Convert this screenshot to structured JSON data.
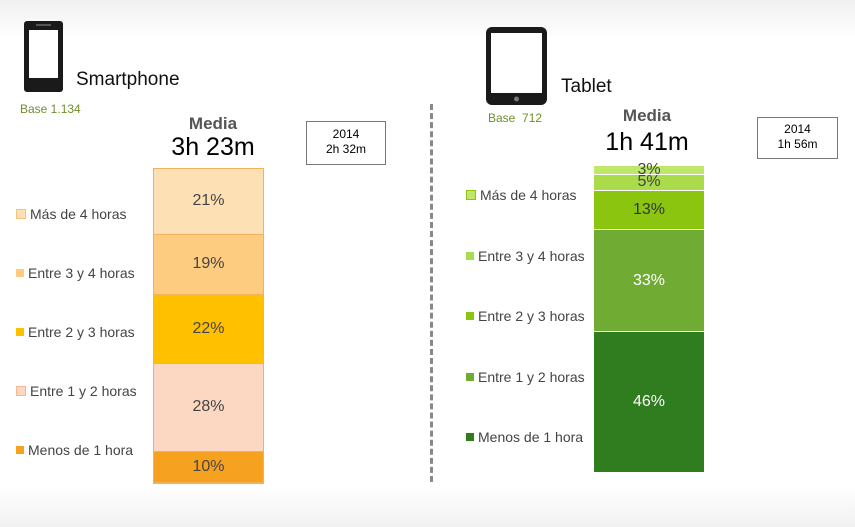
{
  "smartphone": {
    "title": "Smartphone",
    "base": "Base 1.134",
    "media_label": "Media",
    "media_value": "3h 23m",
    "prev_year": "2014",
    "prev_value": "2h 32m",
    "icon": "smartphone-icon"
  },
  "tablet": {
    "title": "Tablet",
    "base": "Base  712",
    "media_label": "Media",
    "media_value": "1h 41m",
    "prev_year": "2014",
    "prev_value": "1h 56m",
    "icon": "tablet-icon"
  },
  "chart_data": [
    {
      "type": "bar",
      "stacked": true,
      "title": "Smartphone",
      "categories": [
        "Más de 4 horas",
        "Entre 3 y 4 horas",
        "Entre 2 y 3 horas",
        "Entre 1 y 2 horas",
        "Menos de 1 hora"
      ],
      "values": [
        21,
        19,
        22,
        28,
        10
      ],
      "labels": [
        "21%",
        "19%",
        "22%",
        "28%",
        "10%"
      ],
      "colors": [
        "#fde0b3",
        "#fdcc80",
        "#ffc000",
        "#fcd8c2",
        "#f7a121"
      ],
      "label_colors": [
        "#444444",
        "#444444",
        "#444444",
        "#444444",
        "#444444"
      ],
      "legend_position": "left"
    },
    {
      "type": "bar",
      "stacked": true,
      "title": "Tablet",
      "categories": [
        "Más de 4 horas",
        "Entre 3 y 4 horas",
        "Entre 2 y 3 horas",
        "Entre 1 y 2 horas",
        "Menos de 1 hora"
      ],
      "values": [
        3,
        5,
        13,
        33,
        46
      ],
      "labels": [
        "3%",
        "5%",
        "13%",
        "33%",
        "46%"
      ],
      "colors": [
        "#bfe86a",
        "#a9db4b",
        "#8cc510",
        "#70ab33",
        "#2f7d1f"
      ],
      "label_colors": [
        "#444444",
        "#444444",
        "#333333",
        "#ffffff",
        "#ffffff"
      ],
      "legend_position": "left"
    }
  ]
}
